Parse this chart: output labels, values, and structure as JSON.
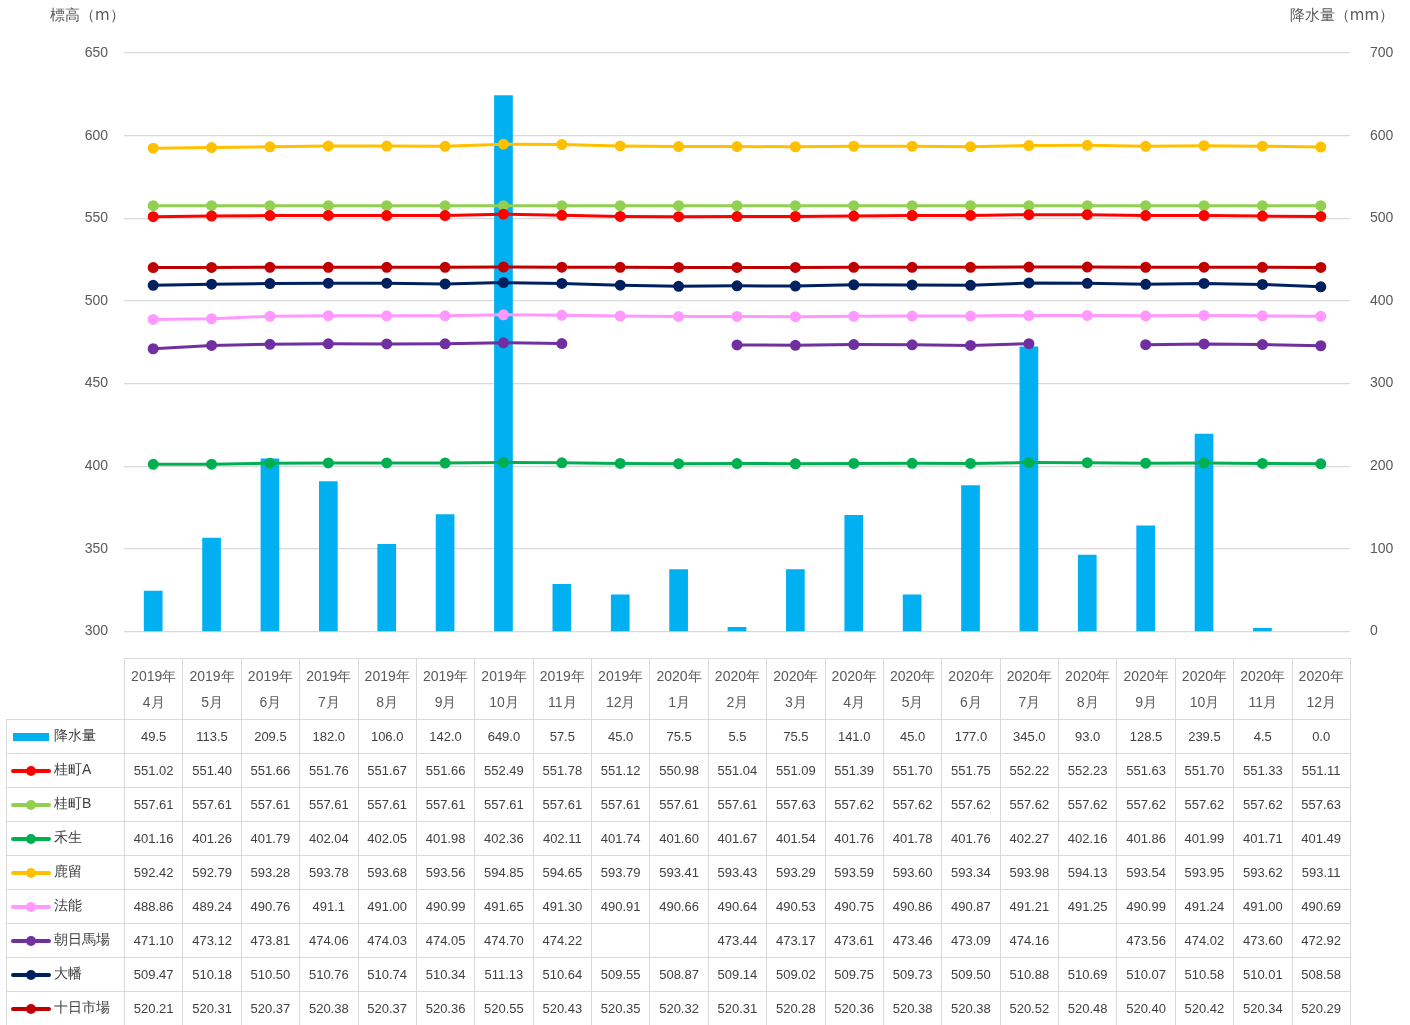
{
  "chart_data": {
    "type": "bar",
    "ylabel": "標高（m）",
    "y2label": "降水量（mm）",
    "categories": [
      "2019年4月",
      "2019年5月",
      "2019年6月",
      "2019年7月",
      "2019年8月",
      "2019年9月",
      "2019年10月",
      "2019年11月",
      "2019年12月",
      "2020年1月",
      "2020年2月",
      "2020年3月",
      "2020年4月",
      "2020年5月",
      "2020年6月",
      "2020年7月",
      "2020年8月",
      "2020年9月",
      "2020年10月",
      "2020年11月",
      "2020年12月"
    ],
    "ylim": [
      300,
      650
    ],
    "yticks": [
      300,
      350,
      400,
      450,
      500,
      550,
      600,
      650
    ],
    "y2lim": [
      0,
      700
    ],
    "y2ticks": [
      0,
      100,
      200,
      300,
      400,
      500,
      600,
      700
    ],
    "grid": "y",
    "legend": "bottom",
    "marker": "circle",
    "series": [
      {
        "name": "降水量",
        "axis": "y2",
        "color": "#00b0f0",
        "values": [
          49.5,
          113.5,
          209.5,
          182.0,
          106.0,
          142.0,
          649.0,
          57.5,
          45.0,
          75.5,
          5.5,
          75.5,
          141.0,
          45.0,
          177.0,
          345.0,
          93.0,
          128.5,
          239.5,
          4.5,
          0.0
        ],
        "value_labels": [
          "49.5",
          "113.5",
          "209.5",
          "182.0",
          "106.0",
          "142.0",
          "649.0",
          "57.5",
          "45.0",
          "75.5",
          "5.5",
          "75.5",
          "141.0",
          "45.0",
          "177.0",
          "345.0",
          "93.0",
          "128.5",
          "239.5",
          "4.5",
          "0.0"
        ]
      },
      {
        "name": "桂町A",
        "type": "line",
        "color": "#ff0000",
        "values": [
          551.02,
          551.4,
          551.66,
          551.76,
          551.67,
          551.66,
          552.49,
          551.78,
          551.12,
          550.98,
          551.04,
          551.09,
          551.39,
          551.7,
          551.75,
          552.22,
          552.23,
          551.63,
          551.7,
          551.33,
          551.11
        ],
        "value_labels": [
          "551.02",
          "551.40",
          "551.66",
          "551.76",
          "551.67",
          "551.66",
          "552.49",
          "551.78",
          "551.12",
          "550.98",
          "551.04",
          "551.09",
          "551.39",
          "551.70",
          "551.75",
          "552.22",
          "552.23",
          "551.63",
          "551.70",
          "551.33",
          "551.11"
        ]
      },
      {
        "name": "桂町B",
        "type": "line",
        "color": "#92d050",
        "values": [
          557.61,
          557.61,
          557.61,
          557.61,
          557.61,
          557.61,
          557.61,
          557.61,
          557.61,
          557.61,
          557.61,
          557.63,
          557.62,
          557.62,
          557.62,
          557.62,
          557.62,
          557.62,
          557.62,
          557.62,
          557.63
        ],
        "value_labels": [
          "557.61",
          "557.61",
          "557.61",
          "557.61",
          "557.61",
          "557.61",
          "557.61",
          "557.61",
          "557.61",
          "557.61",
          "557.61",
          "557.63",
          "557.62",
          "557.62",
          "557.62",
          "557.62",
          "557.62",
          "557.62",
          "557.62",
          "557.62",
          "557.63"
        ]
      },
      {
        "name": "禾生",
        "type": "line",
        "color": "#00b050",
        "values": [
          401.16,
          401.26,
          401.79,
          402.04,
          402.05,
          401.98,
          402.36,
          402.11,
          401.74,
          401.6,
          401.67,
          401.54,
          401.76,
          401.78,
          401.76,
          402.27,
          402.16,
          401.86,
          401.99,
          401.71,
          401.49
        ],
        "value_labels": [
          "401.16",
          "401.26",
          "401.79",
          "402.04",
          "402.05",
          "401.98",
          "402.36",
          "402.11",
          "401.74",
          "401.60",
          "401.67",
          "401.54",
          "401.76",
          "401.78",
          "401.76",
          "402.27",
          "402.16",
          "401.86",
          "401.99",
          "401.71",
          "401.49"
        ]
      },
      {
        "name": "鹿留",
        "type": "line",
        "color": "#ffc000",
        "values": [
          592.42,
          592.79,
          593.28,
          593.78,
          593.68,
          593.56,
          594.85,
          594.65,
          593.79,
          593.41,
          593.43,
          593.29,
          593.59,
          593.6,
          593.34,
          593.98,
          594.13,
          593.54,
          593.95,
          593.62,
          593.11
        ],
        "value_labels": [
          "592.42",
          "592.79",
          "593.28",
          "593.78",
          "593.68",
          "593.56",
          "594.85",
          "594.65",
          "593.79",
          "593.41",
          "593.43",
          "593.29",
          "593.59",
          "593.60",
          "593.34",
          "593.98",
          "594.13",
          "593.54",
          "593.95",
          "593.62",
          "593.11"
        ]
      },
      {
        "name": "法能",
        "type": "line",
        "color": "#ff99ff",
        "values": [
          488.86,
          489.24,
          490.76,
          491.1,
          491.0,
          490.99,
          491.65,
          491.3,
          490.91,
          490.66,
          490.64,
          490.53,
          490.75,
          490.86,
          490.87,
          491.21,
          491.25,
          490.99,
          491.24,
          491.0,
          490.69
        ],
        "value_labels": [
          "488.86",
          "489.24",
          "490.76",
          "491.1",
          "491.00",
          "490.99",
          "491.65",
          "491.30",
          "490.91",
          "490.66",
          "490.64",
          "490.53",
          "490.75",
          "490.86",
          "490.87",
          "491.21",
          "491.25",
          "490.99",
          "491.24",
          "491.00",
          "490.69"
        ]
      },
      {
        "name": "朝日馬場",
        "type": "line",
        "color": "#7030a0",
        "values": [
          471.1,
          473.12,
          473.81,
          474.06,
          474.03,
          474.05,
          474.7,
          474.22,
          null,
          null,
          473.44,
          473.17,
          473.61,
          473.46,
          473.09,
          474.16,
          null,
          473.56,
          474.02,
          473.6,
          472.92
        ],
        "value_labels": [
          "471.10",
          "473.12",
          "473.81",
          "474.06",
          "474.03",
          "474.05",
          "474.70",
          "474.22",
          null,
          null,
          "473.44",
          "473.17",
          "473.61",
          "473.46",
          "473.09",
          "474.16",
          null,
          "473.56",
          "474.02",
          "473.60",
          "472.92"
        ]
      },
      {
        "name": "大幡",
        "type": "line",
        "color": "#002060",
        "values": [
          509.47,
          510.18,
          510.5,
          510.76,
          510.74,
          510.34,
          511.13,
          510.64,
          509.55,
          508.87,
          509.14,
          509.02,
          509.75,
          509.73,
          509.5,
          510.88,
          510.69,
          510.07,
          510.58,
          510.01,
          508.58
        ],
        "value_labels": [
          "509.47",
          "510.18",
          "510.50",
          "510.76",
          "510.74",
          "510.34",
          "511.13",
          "510.64",
          "509.55",
          "508.87",
          "509.14",
          "509.02",
          "509.75",
          "509.73",
          "509.50",
          "510.88",
          "510.69",
          "510.07",
          "510.58",
          "510.01",
          "508.58"
        ]
      },
      {
        "name": "十日市場",
        "type": "line",
        "color": "#c00000",
        "values": [
          520.21,
          520.31,
          520.37,
          520.38,
          520.37,
          520.36,
          520.55,
          520.43,
          520.35,
          520.32,
          520.31,
          520.28,
          520.36,
          520.38,
          520.38,
          520.52,
          520.48,
          520.4,
          520.42,
          520.34,
          520.29
        ],
        "value_labels": [
          "520.21",
          "520.31",
          "520.37",
          "520.38",
          "520.37",
          "520.36",
          "520.55",
          "520.43",
          "520.35",
          "520.32",
          "520.31",
          "520.28",
          "520.36",
          "520.38",
          "520.38",
          "520.52",
          "520.48",
          "520.40",
          "520.42",
          "520.34",
          "520.29"
        ]
      }
    ]
  }
}
